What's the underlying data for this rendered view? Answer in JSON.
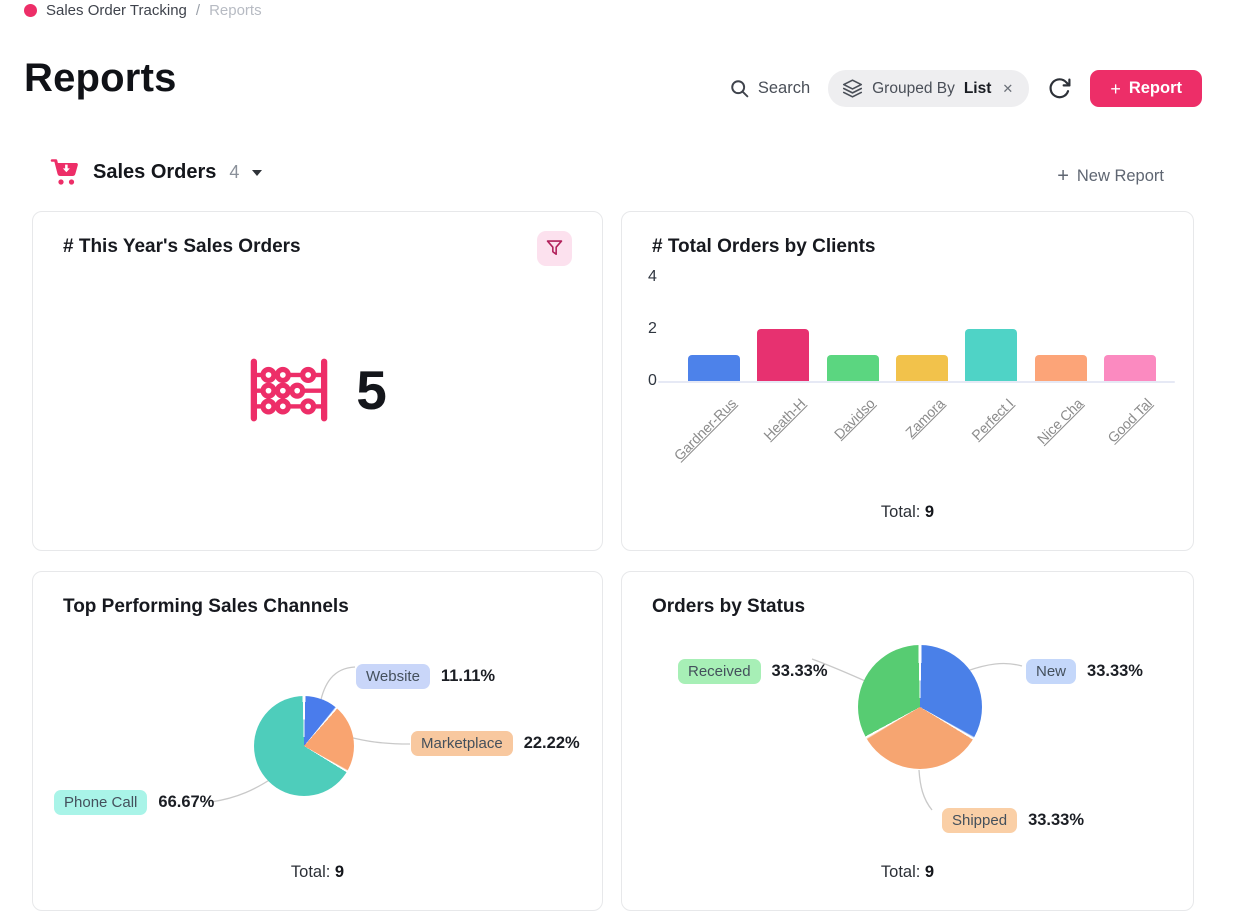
{
  "colors": {
    "accent": "#ed2e68",
    "accent_dark": "#b1205a",
    "funnel_bg": "#fce1ee",
    "pill_bg": "#eeeef0",
    "card_border": "#e7e8ea",
    "axis_label": "#8b8b8b",
    "leader_line": "#c9c9c9"
  },
  "icons": {
    "plus": "+",
    "close": "✕",
    "caret_down": "▾"
  },
  "breadcrumb": {
    "workspace": "Sales Order Tracking",
    "separator": "/",
    "current": "Reports"
  },
  "header": {
    "title": "Reports"
  },
  "toolbar": {
    "search_label": "Search",
    "grouped_by_label": "Grouped By",
    "grouped_by_value": "List",
    "report_label": "Report"
  },
  "section": {
    "title": "Sales Orders",
    "count": "4",
    "new_report_label": "New Report"
  },
  "cards": {
    "metric": {
      "title": "# This Year's Sales Orders",
      "value": "5"
    },
    "bar": {
      "title": "# Total Orders by Clients",
      "total_label": "Total:",
      "total_value": "9"
    },
    "pie_channels": {
      "title": "Top Performing Sales Channels",
      "total_label": "Total:",
      "total_value": "9"
    },
    "pie_status": {
      "title": "Orders by Status",
      "total_label": "Total:",
      "total_value": "9"
    }
  },
  "chart_data": [
    {
      "type": "bar",
      "title": "# Total Orders by Clients",
      "categories": [
        "Gardner-Rus",
        "Heath-H",
        "Davidso",
        "Zamora",
        "Perfect I",
        "Nice Cha",
        "Good Tal"
      ],
      "values": [
        1,
        2,
        1,
        1,
        2,
        1,
        1
      ],
      "colors": [
        "#4d82ea",
        "#e73170",
        "#5bd680",
        "#f2c24b",
        "#4fd3c6",
        "#fca478",
        "#fb8ac0"
      ],
      "xlabel": "",
      "ylabel": "",
      "ylim": [
        0,
        4
      ],
      "yticks": [
        0,
        2,
        4
      ],
      "grid": false,
      "total": 9
    },
    {
      "type": "pie",
      "title": "Top Performing Sales Channels",
      "labels": [
        "Website",
        "Marketplace",
        "Phone Call"
      ],
      "values": [
        1,
        2,
        6
      ],
      "values_pct": [
        11.11,
        22.22,
        66.67
      ],
      "percentages": [
        "11.11%",
        "22.22%",
        "66.67%"
      ],
      "colors": [
        "#4a7cec",
        "#f9a470",
        "#4ecdbb"
      ],
      "pill_colors": [
        "#c9d6f9",
        "#f8c89f",
        "#a9f4e8"
      ],
      "total": 9
    },
    {
      "type": "pie",
      "title": "Orders by Status",
      "labels": [
        "New",
        "Shipped",
        "Received"
      ],
      "values": [
        3,
        3,
        3
      ],
      "values_pct": [
        33.34,
        33.33,
        33.33
      ],
      "percentages": [
        "33.33%",
        "33.33%",
        "33.33%"
      ],
      "colors": [
        "#4a80e8",
        "#f6a571",
        "#57cc72"
      ],
      "pill_colors": [
        "#c4d7fa",
        "#facfa6",
        "#a7efb6"
      ],
      "total": 9
    }
  ]
}
